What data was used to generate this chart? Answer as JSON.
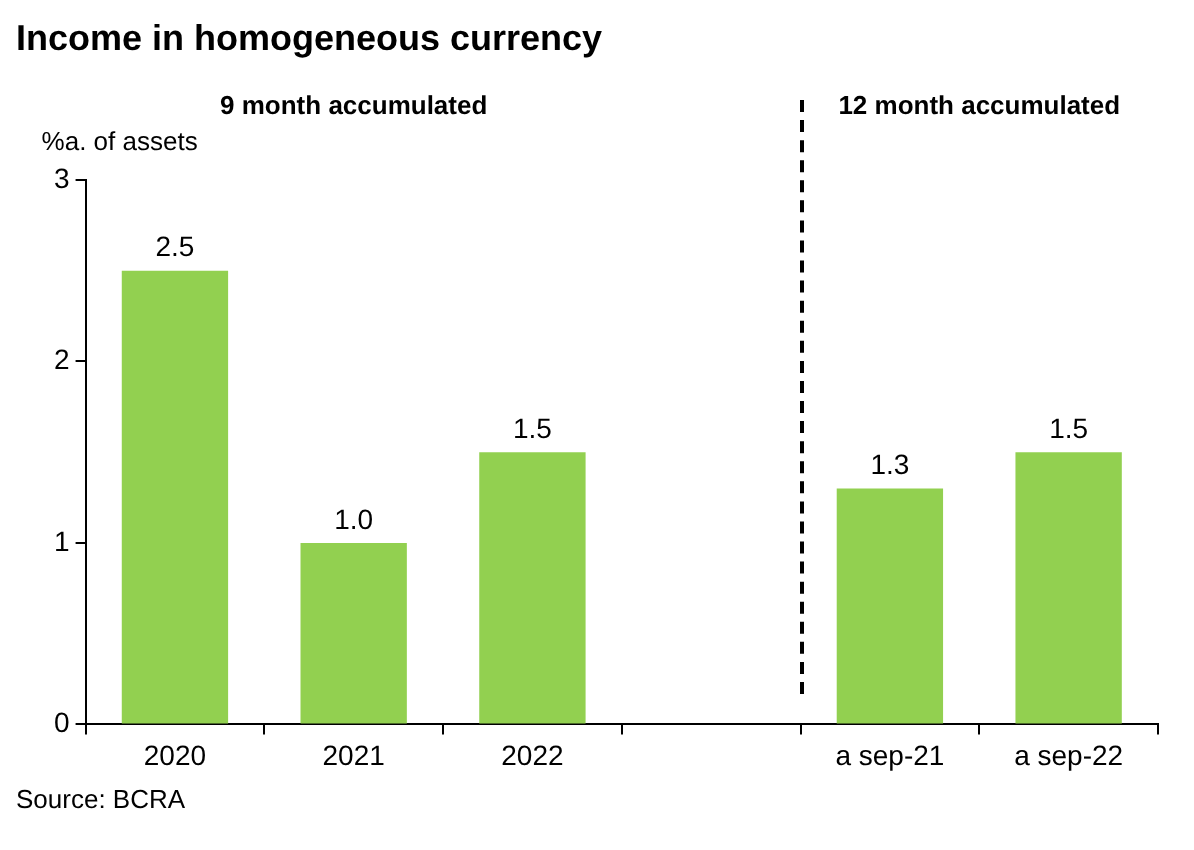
{
  "chart_data": {
    "type": "bar",
    "title": "Income in homogeneous currency",
    "ylabel": "%a. of assets",
    "categories": [
      "2020",
      "2021",
      "2022",
      null,
      "a sep-21",
      "a sep-22"
    ],
    "values": [
      2.5,
      1.0,
      1.5,
      null,
      1.3,
      1.5
    ],
    "value_labels": [
      "2.5",
      "1.0",
      "1.5",
      null,
      "1.3",
      "1.5"
    ],
    "color": "#92d050",
    "ylim": [
      0,
      3
    ],
    "yticks": [
      0,
      1,
      2,
      3
    ],
    "grid": false,
    "legend": false,
    "annotations": [
      "9 month accumulated",
      "12 month accumulated",
      "Source: BCRA"
    ]
  }
}
